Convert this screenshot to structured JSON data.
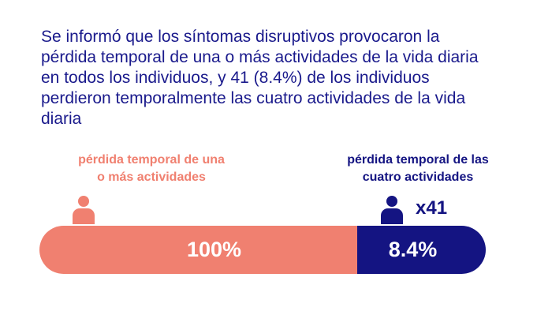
{
  "headline": "Se informó que los síntomas disruptivos provocaron la pérdida temporal de una o más actividades de la vida diaria en todos los individuos, y 41 (8.4%) de los individuos perdieron temporalmente las cuatro actividades de la vida diaria",
  "left_group": {
    "label_line1": "pérdida temporal de una",
    "label_line2": "o más actividades",
    "value": "100%",
    "color": "#f08070",
    "icon": "person-icon"
  },
  "right_group": {
    "label_line1": "pérdida temporal de las",
    "label_line2": "cuatro actividades",
    "multiplier": "x41",
    "value": "8.4%",
    "color": "#141482",
    "icon": "person-icon"
  },
  "colors": {
    "text": "#1a1a8c",
    "background": "#ffffff"
  }
}
